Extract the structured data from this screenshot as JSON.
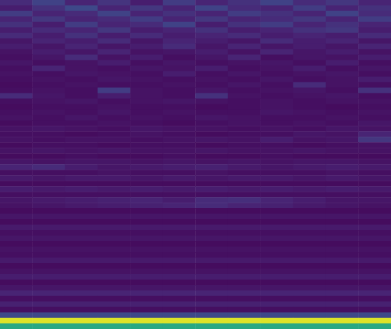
{
  "chart_data": {
    "type": "heatmap",
    "tick_labels": false,
    "zlim": [
      0,
      1
    ],
    "cells": [
      [
        0.12,
        0.2,
        0.1,
        0.15,
        0.08,
        0.18,
        0.1,
        0.14,
        0.2,
        0.12,
        0.16,
        0.1
      ],
      [
        0.08,
        0.14,
        0.22,
        0.1,
        0.16,
        0.1,
        0.2,
        0.12,
        0.1,
        0.18,
        0.1,
        0.14
      ],
      [
        0.18,
        0.1,
        0.12,
        0.2,
        0.1,
        0.14,
        0.1,
        0.18,
        0.14,
        0.1,
        0.2,
        0.12
      ],
      [
        0.1,
        0.16,
        0.1,
        0.12,
        0.18,
        0.1,
        0.16,
        0.1,
        0.12,
        0.16,
        0.1,
        0.18
      ],
      [
        0.14,
        0.08,
        0.18,
        0.1,
        0.12,
        0.2,
        0.08,
        0.14,
        0.18,
        0.1,
        0.14,
        0.1
      ],
      [
        0.08,
        0.12,
        0.1,
        0.16,
        0.08,
        0.1,
        0.14,
        0.08,
        0.1,
        0.14,
        0.16,
        0.08
      ],
      [
        0.12,
        0.08,
        0.14,
        0.08,
        0.12,
        0.08,
        0.1,
        0.12,
        0.08,
        0.1,
        0.08,
        0.12
      ],
      [
        0.06,
        0.1,
        0.08,
        0.12,
        0.06,
        0.1,
        0.08,
        0.06,
        0.12,
        0.08,
        0.1,
        0.06
      ],
      [
        0.08,
        0.06,
        0.1,
        0.06,
        0.08,
        0.12,
        0.06,
        0.1,
        0.06,
        0.08,
        0.06,
        0.1
      ],
      [
        0.05,
        0.08,
        0.06,
        0.1,
        0.05,
        0.06,
        0.08,
        0.05,
        0.1,
        0.06,
        0.08,
        0.05
      ],
      [
        0.04,
        0.06,
        0.12,
        0.05,
        0.08,
        0.04,
        0.06,
        0.1,
        0.04,
        0.06,
        0.05,
        0.08
      ],
      [
        0.06,
        0.04,
        0.05,
        0.08,
        0.04,
        0.06,
        0.04,
        0.05,
        0.06,
        0.04,
        0.08,
        0.04
      ],
      [
        0.04,
        0.1,
        0.05,
        0.04,
        0.06,
        0.05,
        0.08,
        0.04,
        0.05,
        0.08,
        0.04,
        0.06
      ],
      [
        0.05,
        0.04,
        0.06,
        0.05,
        0.04,
        0.08,
        0.04,
        0.06,
        0.04,
        0.05,
        0.06,
        0.04
      ],
      [
        0.04,
        0.05,
        0.04,
        0.06,
        0.05,
        0.04,
        0.05,
        0.04,
        0.06,
        0.04,
        0.05,
        0.08
      ],
      [
        0.03,
        0.04,
        0.05,
        0.04,
        0.04,
        0.05,
        0.04,
        0.06,
        0.04,
        0.12,
        0.05,
        0.04
      ],
      [
        0.04,
        0.05,
        0.04,
        0.18,
        0.05,
        0.04,
        0.06,
        0.04,
        0.05,
        0.06,
        0.04,
        0.14
      ],
      [
        0.12,
        0.06,
        0.04,
        0.08,
        0.05,
        0.04,
        0.14,
        0.05,
        0.04,
        0.05,
        0.06,
        0.04
      ],
      [
        0.04,
        0.05,
        0.06,
        0.04,
        0.05,
        0.06,
        0.05,
        0.04,
        0.05,
        0.04,
        0.05,
        0.05
      ],
      [
        0.03,
        0.04,
        0.04,
        0.05,
        0.04,
        0.04,
        0.03,
        0.04,
        0.05,
        0.04,
        0.03,
        0.04
      ],
      [
        0.04,
        0.05,
        0.04,
        0.06,
        0.04,
        0.05,
        0.04,
        0.04,
        0.06,
        0.05,
        0.04,
        0.05
      ],
      [
        0.05,
        0.04,
        0.06,
        0.04,
        0.05,
        0.04,
        0.06,
        0.05,
        0.04,
        0.04,
        0.05,
        0.04
      ],
      [
        0.03,
        0.04,
        0.04,
        0.05,
        0.04,
        0.03,
        0.04,
        0.05,
        0.04,
        0.05,
        0.04,
        0.06
      ],
      [
        0.05,
        0.06,
        0.05,
        0.04,
        0.06,
        0.05,
        0.05,
        0.04,
        0.05,
        0.04,
        0.06,
        0.05
      ],
      [
        0.04,
        0.04,
        0.03,
        0.04,
        0.05,
        0.04,
        0.03,
        0.04,
        0.04,
        0.06,
        0.05,
        0.1
      ],
      [
        0.05,
        0.04,
        0.05,
        0.05,
        0.04,
        0.05,
        0.06,
        0.05,
        0.08,
        0.05,
        0.06,
        0.16
      ],
      [
        0.03,
        0.04,
        0.04,
        0.03,
        0.04,
        0.04,
        0.03,
        0.04,
        0.04,
        0.03,
        0.04,
        0.05
      ],
      [
        0.05,
        0.06,
        0.05,
        0.06,
        0.05,
        0.05,
        0.06,
        0.05,
        0.05,
        0.06,
        0.05,
        0.05
      ],
      [
        0.03,
        0.03,
        0.04,
        0.03,
        0.03,
        0.04,
        0.03,
        0.03,
        0.04,
        0.03,
        0.03,
        0.03
      ],
      [
        0.06,
        0.05,
        0.06,
        0.06,
        0.05,
        0.06,
        0.05,
        0.06,
        0.05,
        0.06,
        0.06,
        0.05
      ],
      [
        0.1,
        0.12,
        0.08,
        0.06,
        0.07,
        0.08,
        0.09,
        0.07,
        0.06,
        0.07,
        0.08,
        0.07
      ],
      [
        0.04,
        0.04,
        0.04,
        0.05,
        0.04,
        0.04,
        0.05,
        0.04,
        0.04,
        0.04,
        0.05,
        0.04
      ],
      [
        0.07,
        0.06,
        0.07,
        0.07,
        0.06,
        0.07,
        0.06,
        0.07,
        0.07,
        0.06,
        0.07,
        0.06
      ],
      [
        0.03,
        0.03,
        0.03,
        0.03,
        0.03,
        0.03,
        0.03,
        0.03,
        0.03,
        0.03,
        0.03,
        0.03
      ],
      [
        0.08,
        0.07,
        0.08,
        0.07,
        0.08,
        0.07,
        0.08,
        0.07,
        0.08,
        0.07,
        0.08,
        0.07
      ],
      [
        0.04,
        0.04,
        0.04,
        0.04,
        0.04,
        0.04,
        0.04,
        0.04,
        0.04,
        0.04,
        0.04,
        0.04
      ],
      [
        0.06,
        0.07,
        0.08,
        0.09,
        0.1,
        0.08,
        0.12,
        0.13,
        0.1,
        0.08,
        0.06,
        0.06
      ],
      [
        0.05,
        0.06,
        0.07,
        0.08,
        0.09,
        0.1,
        0.12,
        0.1,
        0.09,
        0.07,
        0.06,
        0.05
      ],
      [
        0.03,
        0.03,
        0.03,
        0.03,
        0.03,
        0.03,
        0.03,
        0.03,
        0.03,
        0.03,
        0.03,
        0.03
      ],
      [
        0.06,
        0.06,
        0.06,
        0.06,
        0.06,
        0.06,
        0.06,
        0.06,
        0.06,
        0.06,
        0.06,
        0.06
      ],
      [
        0.03,
        0.03,
        0.03,
        0.03,
        0.03,
        0.03,
        0.03,
        0.03,
        0.03,
        0.03,
        0.03,
        0.03
      ],
      [
        0.07,
        0.07,
        0.07,
        0.07,
        0.07,
        0.07,
        0.07,
        0.07,
        0.07,
        0.07,
        0.07,
        0.07
      ],
      [
        0.04,
        0.04,
        0.04,
        0.04,
        0.04,
        0.04,
        0.04,
        0.04,
        0.04,
        0.04,
        0.04,
        0.04
      ],
      [
        0.06,
        0.06,
        0.06,
        0.06,
        0.06,
        0.06,
        0.06,
        0.06,
        0.06,
        0.06,
        0.06,
        0.06
      ],
      [
        0.03,
        0.03,
        0.03,
        0.03,
        0.03,
        0.03,
        0.03,
        0.03,
        0.03,
        0.03,
        0.03,
        0.03
      ],
      [
        0.05,
        0.05,
        0.05,
        0.05,
        0.05,
        0.05,
        0.05,
        0.05,
        0.05,
        0.05,
        0.05,
        0.05
      ],
      [
        0.04,
        0.04,
        0.04,
        0.04,
        0.04,
        0.04,
        0.04,
        0.04,
        0.04,
        0.04,
        0.04,
        0.04
      ],
      [
        0.07,
        0.07,
        0.07,
        0.07,
        0.07,
        0.07,
        0.07,
        0.07,
        0.07,
        0.07,
        0.07,
        0.07
      ],
      [
        0.03,
        0.03,
        0.03,
        0.03,
        0.03,
        0.03,
        0.03,
        0.03,
        0.03,
        0.03,
        0.03,
        0.03
      ],
      [
        0.05,
        0.05,
        0.05,
        0.05,
        0.05,
        0.05,
        0.05,
        0.05,
        0.05,
        0.05,
        0.05,
        0.05
      ],
      [
        0.08,
        0.08,
        0.08,
        0.08,
        0.08,
        0.08,
        0.08,
        0.08,
        0.08,
        0.08,
        0.08,
        0.08
      ],
      [
        0.03,
        0.03,
        0.03,
        0.03,
        0.03,
        0.03,
        0.03,
        0.03,
        0.03,
        0.03,
        0.03,
        0.03
      ],
      [
        0.06,
        0.06,
        0.06,
        0.06,
        0.06,
        0.06,
        0.06,
        0.06,
        0.06,
        0.06,
        0.06,
        0.06
      ],
      [
        0.1,
        0.1,
        0.1,
        0.1,
        0.1,
        0.1,
        0.1,
        0.1,
        0.1,
        0.1,
        0.1,
        0.1
      ],
      [
        0.04,
        0.04,
        0.04,
        0.04,
        0.04,
        0.04,
        0.04,
        0.04,
        0.04,
        0.04,
        0.04,
        0.04
      ],
      [
        0.09,
        0.09,
        0.09,
        0.09,
        0.09,
        0.09,
        0.09,
        0.09,
        0.09,
        0.09,
        0.09,
        0.09
      ],
      [
        0.04,
        0.04,
        0.04,
        0.04,
        0.04,
        0.04,
        0.04,
        0.04,
        0.04,
        0.04,
        0.04,
        0.04
      ],
      [
        0.22,
        0.22,
        0.22,
        0.22,
        0.22,
        0.22,
        0.22,
        0.22,
        0.22,
        0.22,
        0.22,
        0.22
      ],
      [
        0.95,
        0.95,
        0.95,
        0.95,
        0.95,
        0.95,
        0.95,
        0.95,
        0.95,
        0.95,
        0.95,
        0.95
      ],
      [
        0.6,
        0.6,
        0.6,
        0.6,
        0.6,
        0.6,
        0.6,
        0.6,
        0.6,
        0.6,
        0.6,
        0.6
      ]
    ]
  }
}
